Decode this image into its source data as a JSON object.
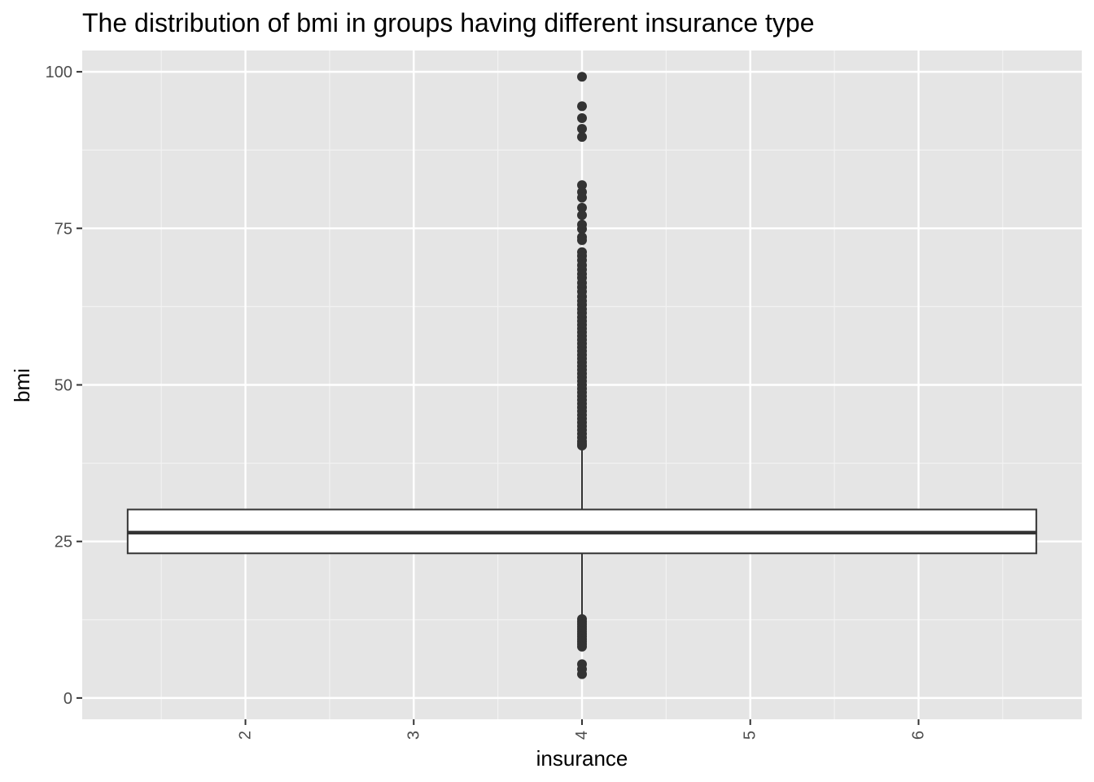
{
  "chart_data": {
    "type": "boxplot",
    "title": "The distribution of bmi in groups having different insurance type",
    "xlabel": "insurance",
    "ylabel": "bmi",
    "xlim": [
      1.03,
      6.97
    ],
    "ylim": [
      0,
      100
    ],
    "x_ticks": [
      2,
      3,
      4,
      5,
      6
    ],
    "y_ticks": [
      0,
      25,
      50,
      75,
      100
    ],
    "x_tick_rotation": -90,
    "grid": true,
    "legend": "none",
    "colors": {
      "panel": "#e5e5e5",
      "grid_major": "#ffffff",
      "grid_minor": "#f2f2f2",
      "box_fill": "#ffffff",
      "box_line": "#333333",
      "point": "#333333",
      "tick_label": "#4d4d4d"
    },
    "box": {
      "x_center": 4,
      "x_range": [
        1.3,
        6.7
      ],
      "q1": 23.1,
      "median": 26.4,
      "q3": 30.1,
      "whisker_low": 12.7,
      "whisker_high": 40.2
    },
    "outliers": [
      99.2,
      94.5,
      92.6,
      90.9,
      89.6,
      81.9,
      80.8,
      79.9,
      78.3,
      77.1,
      75.6,
      74.9,
      73.6,
      73.1,
      71.2,
      70.6,
      69.9,
      69.1,
      68.4,
      67.7,
      67.1,
      66.3,
      65.6,
      64.9,
      64.1,
      63.4,
      62.8,
      62.1,
      61.5,
      60.8,
      60.2,
      59.6,
      59.0,
      58.4,
      57.8,
      57.2,
      56.6,
      56.0,
      55.4,
      54.8,
      54.2,
      53.6,
      53.0,
      52.4,
      51.8,
      51.2,
      50.6,
      50.0,
      49.4,
      48.8,
      48.2,
      47.6,
      47.0,
      46.4,
      45.8,
      45.2,
      44.6,
      44.0,
      43.4,
      42.8,
      42.2,
      41.6,
      41.0,
      40.6,
      40.3,
      12.6,
      12.2,
      11.8,
      11.4,
      11.0,
      10.6,
      10.2,
      9.8,
      9.4,
      9.0,
      8.6,
      8.2,
      5.4,
      4.6,
      3.8
    ]
  }
}
